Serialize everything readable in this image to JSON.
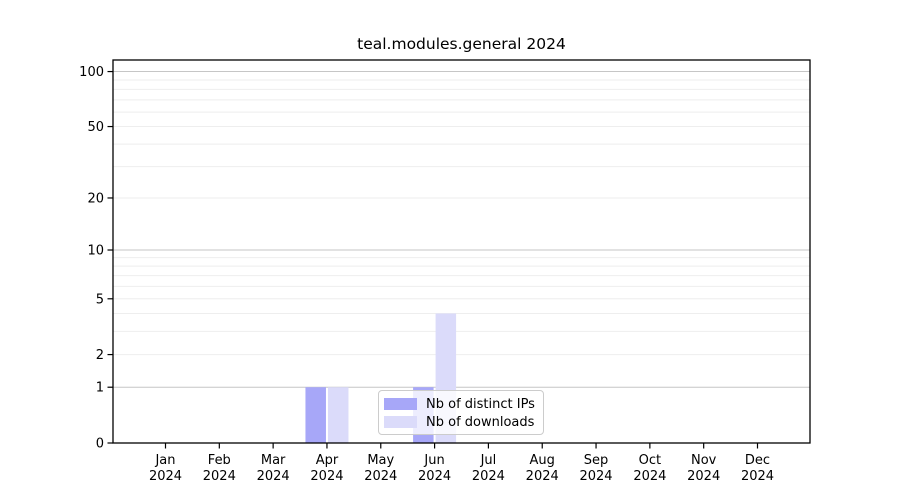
{
  "chart_data": {
    "type": "bar",
    "title": "teal.modules.general 2024",
    "categories": [
      "Jan",
      "Feb",
      "Mar",
      "Apr",
      "May",
      "Jun",
      "Jul",
      "Aug",
      "Sep",
      "Oct",
      "Nov",
      "Dec"
    ],
    "xtick_year": "2024",
    "series": [
      {
        "name": "Nb of distinct IPs",
        "color": "#a7a7f8",
        "values": [
          0,
          0,
          0,
          1,
          0,
          1,
          0,
          0,
          0,
          0,
          0,
          0
        ]
      },
      {
        "name": "Nb of downloads",
        "color": "#dbdbfa",
        "values": [
          0,
          0,
          0,
          1,
          0,
          4,
          0,
          0,
          0,
          0,
          0,
          0
        ]
      }
    ],
    "xlabel": "",
    "ylabel": "",
    "yticks": [
      0,
      1,
      2,
      5,
      10,
      20,
      50,
      100
    ],
    "scale": "log1p",
    "ylim": [
      0,
      115.6
    ],
    "grid": {
      "decade": [
        1,
        10,
        100
      ],
      "minor": [
        2,
        3,
        4,
        5,
        6,
        7,
        8,
        9,
        20,
        30,
        40,
        50,
        60,
        70,
        80,
        90
      ]
    },
    "legend": {
      "position": "lower center",
      "entries": [
        "Nb of distinct IPs",
        "Nb of downloads"
      ]
    }
  }
}
